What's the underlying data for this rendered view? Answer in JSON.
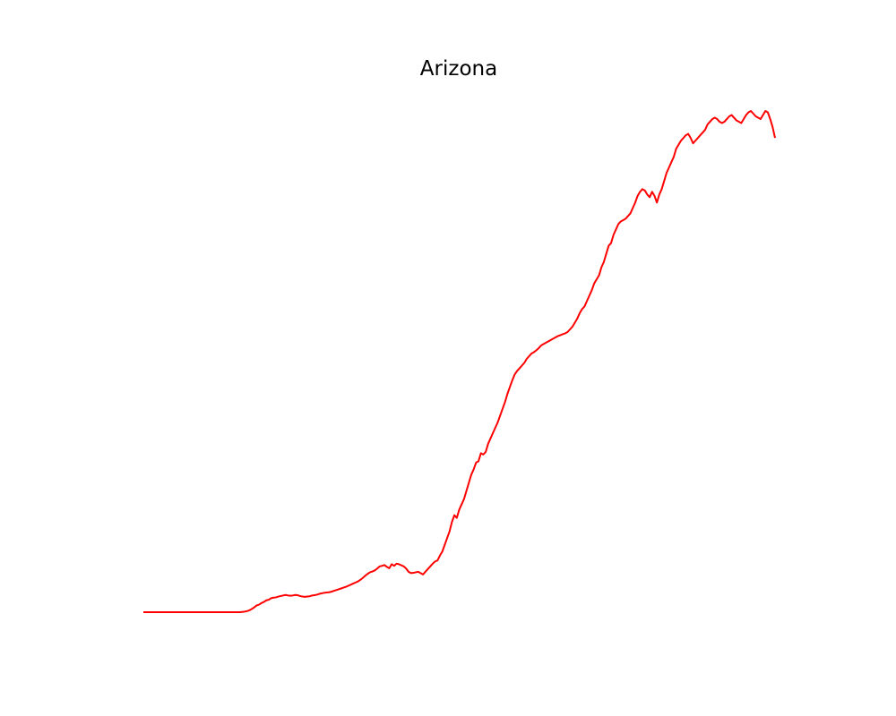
{
  "chart_data": {
    "type": "line",
    "title": "Arizona",
    "xlabel": "",
    "ylabel": "",
    "axes_visible": false,
    "grid": false,
    "series": [
      {
        "color": "#ff0000",
        "values": [
          0,
          0,
          0,
          0,
          0,
          0,
          0,
          0,
          0,
          0,
          0,
          0,
          0,
          0,
          0,
          0,
          0,
          0,
          0,
          0,
          0,
          0,
          0,
          0,
          0,
          0,
          0,
          0,
          0,
          0,
          0,
          0,
          0,
          0,
          0,
          0,
          0,
          0,
          0,
          0,
          0,
          0.01,
          0.02,
          0.04,
          0.07,
          0.12,
          0.18,
          0.25,
          0.28,
          0.34,
          0.38,
          0.44,
          0.46,
          0.52,
          0.54,
          0.55,
          0.58,
          0.6,
          0.62,
          0.64,
          0.62,
          0.61,
          0.62,
          0.64,
          0.63,
          0.6,
          0.58,
          0.57,
          0.58,
          0.59,
          0.62,
          0.63,
          0.65,
          0.68,
          0.7,
          0.72,
          0.73,
          0.74,
          0.76,
          0.79,
          0.82,
          0.85,
          0.88,
          0.91,
          0.94,
          0.98,
          1.02,
          1.06,
          1.1,
          1.14,
          1.2,
          1.27,
          1.35,
          1.42,
          1.48,
          1.51,
          1.55,
          1.62,
          1.7,
          1.72,
          1.75,
          1.68,
          1.63,
          1.78,
          1.72,
          1.8,
          1.78,
          1.74,
          1.7,
          1.62,
          1.5,
          1.45,
          1.46,
          1.48,
          1.5,
          1.45,
          1.4,
          1.5,
          1.6,
          1.7,
          1.8,
          1.88,
          1.92,
          2.1,
          2.25,
          2.5,
          2.75,
          3.0,
          3.35,
          3.6,
          3.5,
          3.8,
          4.0,
          4.2,
          4.5,
          4.8,
          5.1,
          5.3,
          5.55,
          5.6,
          5.9,
          5.85,
          5.95,
          6.25,
          6.45,
          6.65,
          6.85,
          7.05,
          7.3,
          7.55,
          7.8,
          8.1,
          8.35,
          8.6,
          8.82,
          8.95,
          9.05,
          9.15,
          9.25,
          9.4,
          9.5,
          9.6,
          9.65,
          9.72,
          9.8,
          9.9,
          9.95,
          10.0,
          10.05,
          10.1,
          10.15,
          10.2,
          10.25,
          10.28,
          10.32,
          10.35,
          10.4,
          10.5,
          10.6,
          10.75,
          10.9,
          11.1,
          11.25,
          11.35,
          11.55,
          11.75,
          11.95,
          12.2,
          12.35,
          12.5,
          12.8,
          13.0,
          13.3,
          13.6,
          13.7,
          14.0,
          14.2,
          14.4,
          14.5,
          14.55,
          14.6,
          14.7,
          14.8,
          15.0,
          15.2,
          15.45,
          15.6,
          15.7,
          15.65,
          15.5,
          15.4,
          15.6,
          15.45,
          15.2,
          15.5,
          15.7,
          16.0,
          16.3,
          16.5,
          16.7,
          16.9,
          17.2,
          17.35,
          17.5,
          17.6,
          17.7,
          17.75,
          17.6,
          17.4,
          17.5,
          17.6,
          17.7,
          17.8,
          17.9,
          18.1,
          18.2,
          18.3,
          18.35,
          18.3,
          18.2,
          18.15,
          18.2,
          18.3,
          18.4,
          18.45,
          18.35,
          18.25,
          18.2,
          18.15,
          18.3,
          18.45,
          18.55,
          18.6,
          18.5,
          18.4,
          18.35,
          18.3,
          18.45,
          18.6,
          18.55,
          18.3,
          18.0,
          17.6
        ]
      }
    ]
  }
}
